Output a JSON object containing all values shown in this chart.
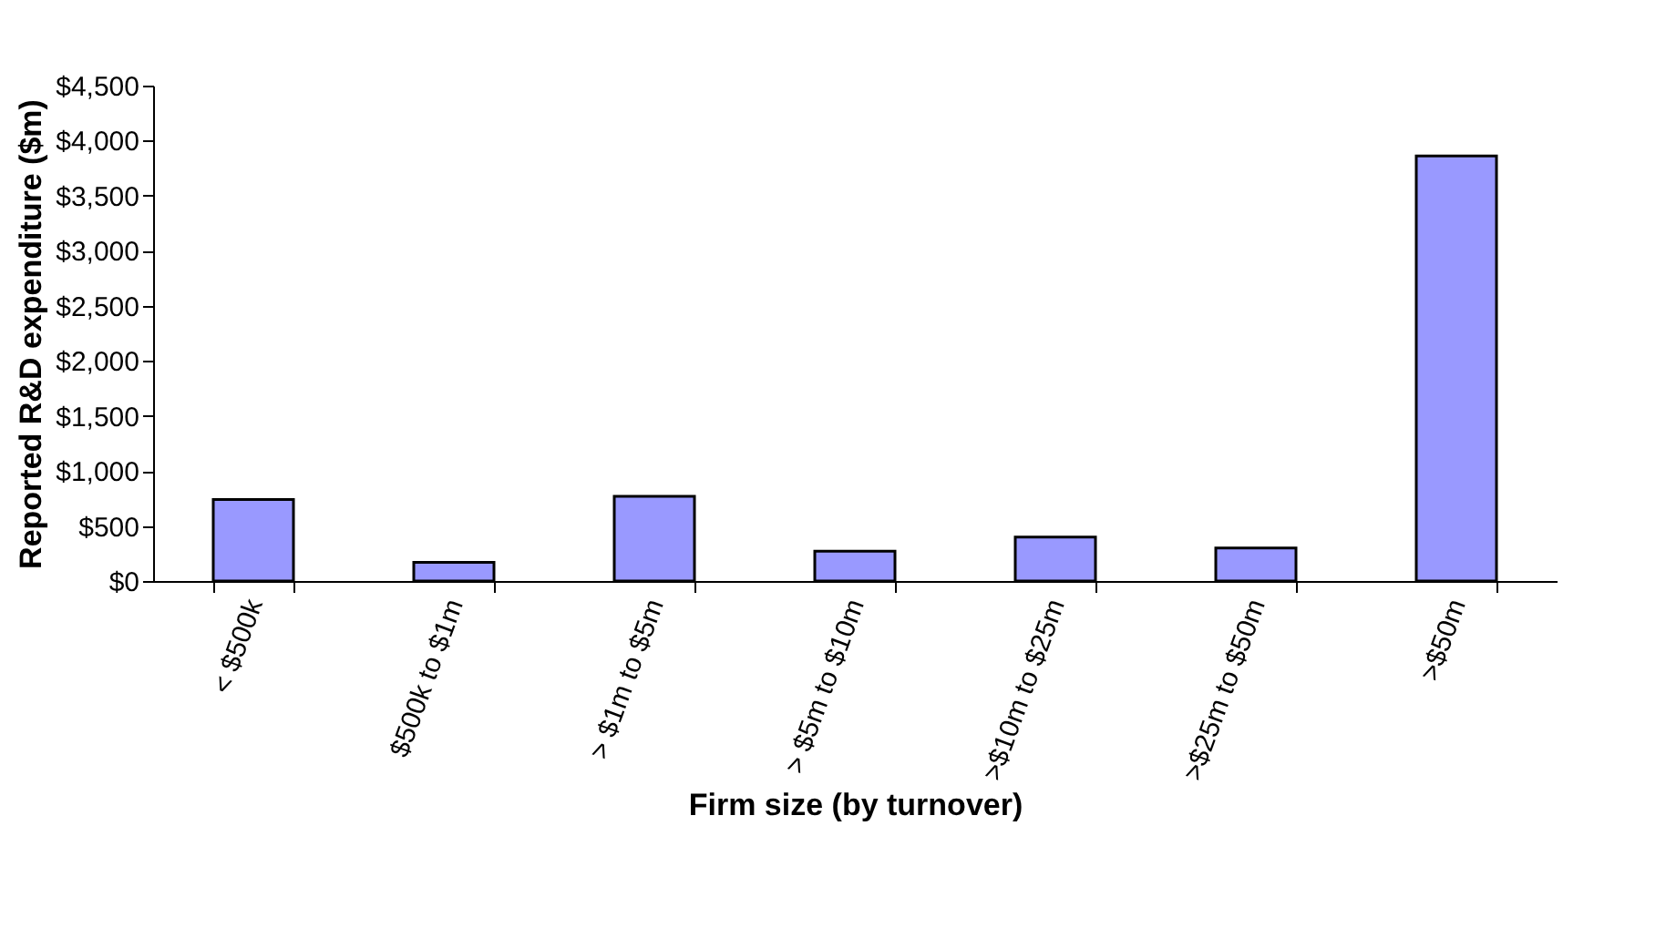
{
  "chart_data": {
    "type": "bar",
    "xlabel": "Firm size (by turnover)",
    "ylabel": "Reported R&D expenditure ($m)",
    "categories": [
      "< $500k",
      "$500k to $1m",
      "> $1m to $5m",
      "> $5m to $10m",
      ">$10m to $25m",
      ">$25m to $50m",
      ">$50m"
    ],
    "values": [
      740,
      170,
      770,
      270,
      400,
      300,
      3860
    ],
    "color": "#9999ff",
    "ylim": [
      0,
      4500
    ],
    "yticks": [
      {
        "value": 0,
        "label": "$0"
      },
      {
        "value": 500,
        "label": "$500"
      },
      {
        "value": 1000,
        "label": "$1,000"
      },
      {
        "value": 1500,
        "label": "$1,500"
      },
      {
        "value": 2000,
        "label": "$2,000"
      },
      {
        "value": 2500,
        "label": "$2,500"
      },
      {
        "value": 3000,
        "label": "$3,000"
      },
      {
        "value": 3500,
        "label": "$3,500"
      },
      {
        "value": 4000,
        "label": "$4,000"
      },
      {
        "value": 4500,
        "label": "$4,500"
      }
    ],
    "grid": false
  }
}
